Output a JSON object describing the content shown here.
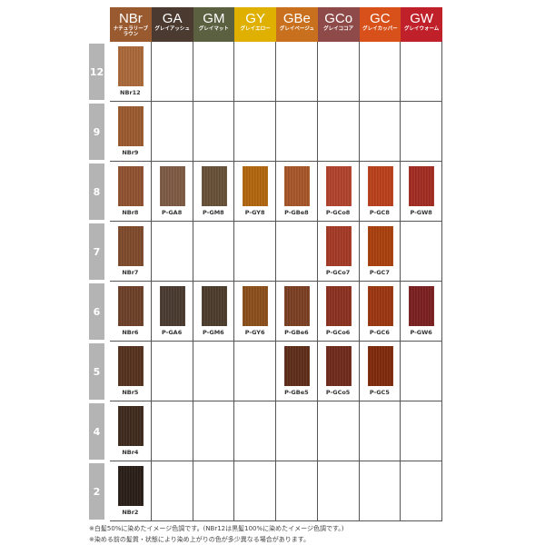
{
  "header": [
    {
      "code": "NBr",
      "name": "ナチュラリーブラウン",
      "color": "#9a5a30"
    },
    {
      "code": "GA",
      "name": "グレイアッシュ",
      "color": "#4a3a30"
    },
    {
      "code": "GM",
      "name": "グレイマット",
      "color": "#5a6040"
    },
    {
      "code": "GY",
      "name": "グレイエロー",
      "color": "#e0b000"
    },
    {
      "code": "GBe",
      "name": "グレイベージュ",
      "color": "#c8701e"
    },
    {
      "code": "GCo",
      "name": "グレイココア",
      "color": "#8e4a48"
    },
    {
      "code": "GC",
      "name": "グレイカッパー",
      "color": "#d8501a"
    },
    {
      "code": "GW",
      "name": "グレイウォーム",
      "color": "#c0202a"
    }
  ],
  "rows": [
    {
      "level": "12",
      "cells": [
        {
          "label": "NBr12",
          "color": "#a9683a"
        },
        null,
        null,
        null,
        null,
        null,
        null,
        null
      ]
    },
    {
      "level": "9",
      "cells": [
        {
          "label": "NBr9",
          "color": "#9a5a30"
        },
        null,
        null,
        null,
        null,
        null,
        null,
        null
      ]
    },
    {
      "level": "8",
      "cells": [
        {
          "label": "NBr8",
          "color": "#8e5230"
        },
        {
          "label": "P-GA8",
          "color": "#7d5a43"
        },
        {
          "label": "P-GM8",
          "color": "#665038"
        },
        {
          "label": "P-GY8",
          "color": "#b0660e"
        },
        {
          "label": "P-GBe8",
          "color": "#a55527"
        },
        {
          "label": "P-GCo8",
          "color": "#b0432d"
        },
        {
          "label": "P-GC8",
          "color": "#b8401c"
        },
        {
          "label": "P-GW8",
          "color": "#a02c22"
        }
      ]
    },
    {
      "level": "7",
      "cells": [
        {
          "label": "NBr7",
          "color": "#7e4a2c"
        },
        null,
        null,
        null,
        null,
        {
          "label": "P-GCo7",
          "color": "#a33a26"
        },
        {
          "label": "P-GC7",
          "color": "#a8400e"
        },
        null
      ]
    },
    {
      "level": "6",
      "cells": [
        {
          "label": "NBr6",
          "color": "#6c4028"
        },
        {
          "label": "P-GA6",
          "color": "#4a3a30"
        },
        {
          "label": "P-GM6",
          "color": "#4b3c2c"
        },
        {
          "label": "P-GY6",
          "color": "#8a4f1a"
        },
        {
          "label": "P-GBe6",
          "color": "#7a3f22"
        },
        {
          "label": "P-GCo6",
          "color": "#8a3120"
        },
        {
          "label": "P-GC6",
          "color": "#9a3610"
        },
        {
          "label": "P-GW6",
          "color": "#7a2020"
        }
      ]
    },
    {
      "level": "5",
      "cells": [
        {
          "label": "NBr5",
          "color": "#55321f"
        },
        null,
        null,
        null,
        {
          "label": "P-GBe5",
          "color": "#5e2e1a"
        },
        {
          "label": "P-GCo5",
          "color": "#6e2a1c"
        },
        {
          "label": "P-GC5",
          "color": "#7e2a0c"
        },
        null
      ]
    },
    {
      "level": "4",
      "cells": [
        {
          "label": "NBr4",
          "color": "#3f2a1e"
        },
        null,
        null,
        null,
        null,
        null,
        null,
        null
      ]
    },
    {
      "level": "2",
      "cells": [
        {
          "label": "NBr2",
          "color": "#2a1f18"
        },
        null,
        null,
        null,
        null,
        null,
        null,
        null
      ]
    }
  ],
  "notes": [
    "※白髪50%に染めたイメージ色調です。(NBr12は黒髪100%に染めたイメージ色調です。)",
    "※染める前の髪質・状態により染め上がりの色が多少異なる場合があります。"
  ]
}
